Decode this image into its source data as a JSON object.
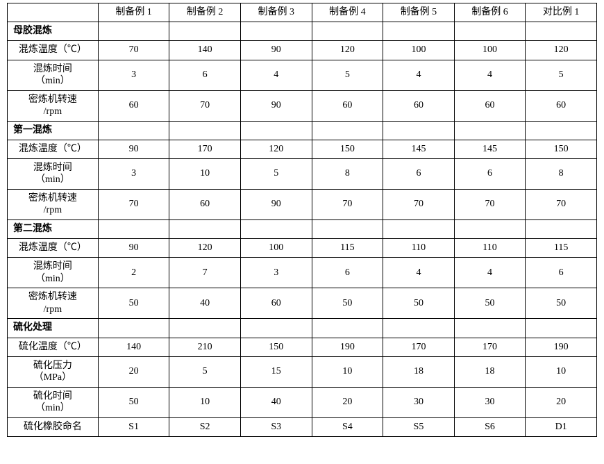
{
  "table": {
    "columns": [
      "制备例 1",
      "制备例 2",
      "制备例 3",
      "制备例 4",
      "制备例 5",
      "制备例 6",
      "对比例 1"
    ],
    "background_color": "#ffffff",
    "border_color": "#000000",
    "font_size_pt": 11,
    "sections": [
      {
        "title": "母胶混炼",
        "rows": [
          {
            "label": "混炼温度（℃）",
            "values": [
              "70",
              "140",
              "90",
              "120",
              "100",
              "100",
              "120"
            ]
          },
          {
            "label_lines": [
              "混炼时间",
              "（min）"
            ],
            "values": [
              "3",
              "6",
              "4",
              "5",
              "4",
              "4",
              "5"
            ]
          },
          {
            "label_lines": [
              "密炼机转速",
              "/rpm"
            ],
            "values": [
              "60",
              "70",
              "90",
              "60",
              "60",
              "60",
              "60"
            ]
          }
        ]
      },
      {
        "title": "第一混炼",
        "rows": [
          {
            "label": "混炼温度（℃）",
            "values": [
              "90",
              "170",
              "120",
              "150",
              "145",
              "145",
              "150"
            ]
          },
          {
            "label_lines": [
              "混炼时间",
              "（min）"
            ],
            "values": [
              "3",
              "10",
              "5",
              "8",
              "6",
              "6",
              "8"
            ]
          },
          {
            "label_lines": [
              "密炼机转速",
              "/rpm"
            ],
            "values": [
              "70",
              "60",
              "90",
              "70",
              "70",
              "70",
              "70"
            ]
          }
        ]
      },
      {
        "title": "第二混炼",
        "rows": [
          {
            "label": "混炼温度（℃）",
            "values": [
              "90",
              "120",
              "100",
              "115",
              "110",
              "110",
              "115"
            ]
          },
          {
            "label_lines": [
              "混炼时间",
              "（min）"
            ],
            "values": [
              "2",
              "7",
              "3",
              "6",
              "4",
              "4",
              "6"
            ]
          },
          {
            "label_lines": [
              "密炼机转速",
              "/rpm"
            ],
            "values": [
              "50",
              "40",
              "60",
              "50",
              "50",
              "50",
              "50"
            ]
          }
        ]
      },
      {
        "title": "硫化处理",
        "rows": [
          {
            "label": "硫化温度（℃）",
            "values": [
              "140",
              "210",
              "150",
              "190",
              "170",
              "170",
              "190"
            ]
          },
          {
            "label_lines": [
              "硫化压力",
              "（MPa）"
            ],
            "values": [
              "20",
              "5",
              "15",
              "10",
              "18",
              "18",
              "10"
            ]
          },
          {
            "label_lines": [
              "硫化时间",
              "（min）"
            ],
            "values": [
              "50",
              "10",
              "40",
              "20",
              "30",
              "30",
              "20"
            ]
          }
        ]
      }
    ],
    "footer_row": {
      "label": "硫化橡胶命名",
      "values": [
        "S1",
        "S2",
        "S3",
        "S4",
        "S5",
        "S6",
        "D1"
      ]
    }
  }
}
